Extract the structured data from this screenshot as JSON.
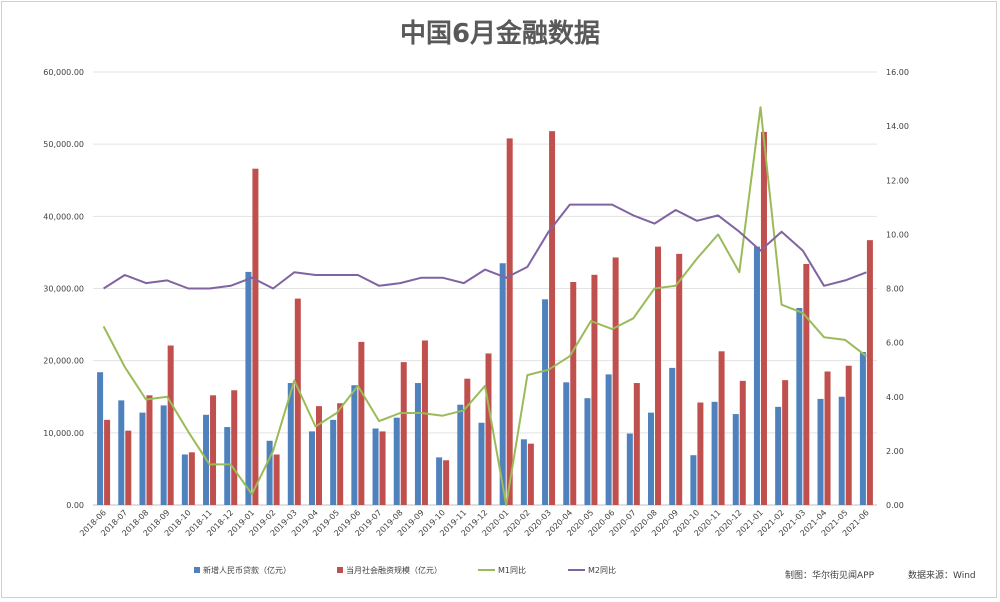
{
  "chart_data": {
    "type": "bar",
    "title": "中国6月金融数据",
    "categories": [
      "2018-06",
      "2018-07",
      "2018-08",
      "2018-09",
      "2018-10",
      "2018-11",
      "2018-12",
      "2019-01",
      "2019-02",
      "2019-03",
      "2019-04",
      "2019-05",
      "2019-06",
      "2019-07",
      "2019-08",
      "2019-09",
      "2019-10",
      "2019-11",
      "2019-12",
      "2020-01",
      "2020-02",
      "2020-03",
      "2020-04",
      "2020-05",
      "2020-06",
      "2020-07",
      "2020-08",
      "2020-09",
      "2020-10",
      "2020-11",
      "2020-12",
      "2021-01",
      "2021-02",
      "2021-03",
      "2021-04",
      "2021-05",
      "2021-06"
    ],
    "y_left": {
      "min": 0,
      "max": 60000,
      "step": 10000,
      "tick_labels": [
        "0.00",
        "10,000.00",
        "20,000.00",
        "30,000.00",
        "40,000.00",
        "50,000.00",
        "60,000.00"
      ]
    },
    "y_right": {
      "min": 0,
      "max": 16,
      "step": 2,
      "tick_labels": [
        "0.00",
        "2.00",
        "4.00",
        "6.00",
        "8.00",
        "10.00",
        "12.00",
        "14.00",
        "16.00"
      ]
    },
    "grid": true,
    "legend_position": "bottom",
    "series": [
      {
        "name": "新增人民币贷款（亿元）",
        "type": "bar",
        "axis": "left",
        "color": "#4f81bd",
        "values": [
          18400,
          14500,
          12800,
          13800,
          7000,
          12500,
          10800,
          32300,
          8900,
          16900,
          10200,
          11800,
          16600,
          10600,
          12100,
          16900,
          6600,
          13900,
          11400,
          33500,
          9100,
          28500,
          17000,
          14800,
          18100,
          9900,
          12800,
          19000,
          6900,
          14300,
          12600,
          35800,
          13600,
          27300,
          14700,
          15000,
          21200
        ]
      },
      {
        "name": "当月社会融资规模（亿元）",
        "type": "bar",
        "axis": "left",
        "color": "#c0504d",
        "values": [
          11800,
          10300,
          15200,
          22100,
          7300,
          15200,
          15900,
          46600,
          7000,
          28600,
          13700,
          14100,
          22600,
          10200,
          19800,
          22800,
          6200,
          17500,
          21000,
          50800,
          8500,
          51800,
          30900,
          31900,
          34300,
          16900,
          35800,
          34800,
          14200,
          21300,
          17200,
          51700,
          17300,
          33400,
          18500,
          19300,
          36700
        ]
      },
      {
        "name": "M1同比",
        "type": "line",
        "axis": "right",
        "color": "#9bbb59",
        "values": [
          6.6,
          5.1,
          3.9,
          4.0,
          2.7,
          1.5,
          1.5,
          0.4,
          2.0,
          4.6,
          2.9,
          3.4,
          4.4,
          3.1,
          3.4,
          3.4,
          3.3,
          3.5,
          4.4,
          0.0,
          4.8,
          5.0,
          5.5,
          6.8,
          6.5,
          6.9,
          8.0,
          8.1,
          9.1,
          10.0,
          8.6,
          14.7,
          7.4,
          7.1,
          6.2,
          6.1,
          5.5
        ]
      },
      {
        "name": "M2同比",
        "type": "line",
        "axis": "right",
        "color": "#8064a2",
        "values": [
          8.0,
          8.5,
          8.2,
          8.3,
          8.0,
          8.0,
          8.1,
          8.4,
          8.0,
          8.6,
          8.5,
          8.5,
          8.5,
          8.1,
          8.2,
          8.4,
          8.4,
          8.2,
          8.7,
          8.4,
          8.8,
          10.1,
          11.1,
          11.1,
          11.1,
          10.7,
          10.4,
          10.9,
          10.5,
          10.7,
          10.1,
          9.4,
          10.1,
          9.4,
          8.1,
          8.3,
          8.6
        ]
      }
    ],
    "notes": {
      "maker": "制图：华尔街见闻APP",
      "source": "数据来源：Wind"
    }
  }
}
